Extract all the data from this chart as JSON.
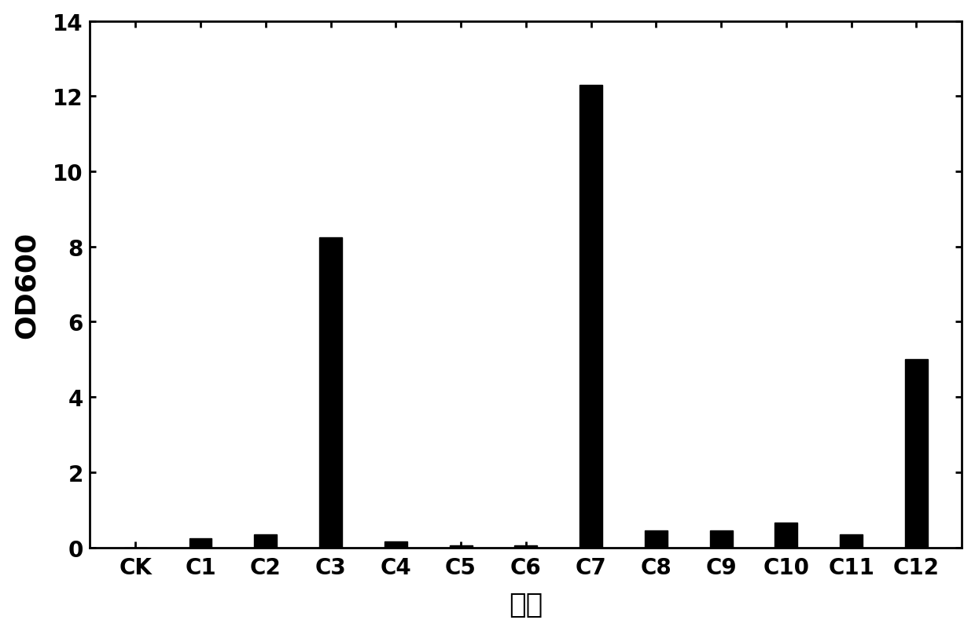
{
  "categories": [
    "CK",
    "C1",
    "C2",
    "C3",
    "C4",
    "C5",
    "C6",
    "C7",
    "C8",
    "C9",
    "C10",
    "C11",
    "C12"
  ],
  "values": [
    0.0,
    0.25,
    0.35,
    8.25,
    0.15,
    0.05,
    0.05,
    12.3,
    0.45,
    0.45,
    0.65,
    0.35,
    5.0
  ],
  "bar_color": "#000000",
  "xlabel": "菌株",
  "ylabel": "OD600",
  "ylim": [
    0,
    14
  ],
  "yticks": [
    0,
    2,
    4,
    6,
    8,
    10,
    12,
    14
  ],
  "background_color": "#ffffff",
  "bar_width": 0.35,
  "xlabel_fontsize": 26,
  "ylabel_fontsize": 26,
  "tick_fontsize": 20,
  "spine_linewidth": 2.0
}
